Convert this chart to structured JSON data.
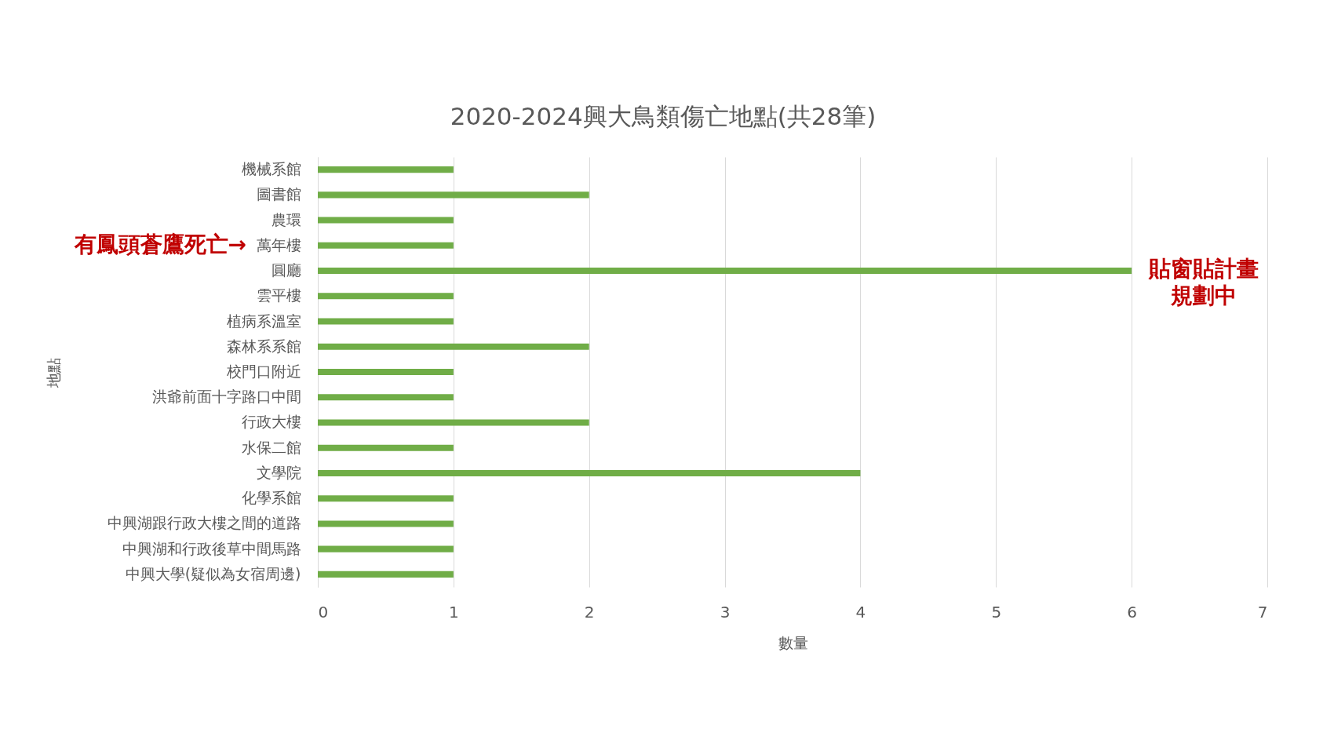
{
  "chart_data": {
    "type": "bar",
    "orientation": "horizontal",
    "title": "2020-2024興大鳥類傷亡地點(共28筆)",
    "xlabel": "數量",
    "ylabel": "地點",
    "categories": [
      "機械系館",
      "圖書館",
      "農環",
      "萬年樓",
      "圓廳",
      "雲平樓",
      "植病系溫室",
      "森林系系館",
      "校門口附近",
      "洪爺前面十字路口中間",
      "行政大樓",
      "水保二館",
      "文學院",
      "化學系館",
      "中興湖跟行政大樓之間的道路",
      "中興湖和行政後草中間馬路",
      "中興大學(疑似為女宿周邊)"
    ],
    "values": [
      1,
      2,
      1,
      1,
      6,
      1,
      1,
      2,
      1,
      1,
      2,
      1,
      4,
      1,
      1,
      1,
      1
    ],
    "color": "#70ad47",
    "xlim": [
      0,
      7
    ],
    "xticks": [
      0,
      1,
      2,
      3,
      4,
      5,
      6,
      7
    ],
    "grid": "x",
    "annotations": [
      "有鳳頭蒼鷹死亡→",
      {
        "text": "貼窗貼計畫規劃中",
        "x": 6,
        "y": "圓廳"
      }
    ]
  }
}
